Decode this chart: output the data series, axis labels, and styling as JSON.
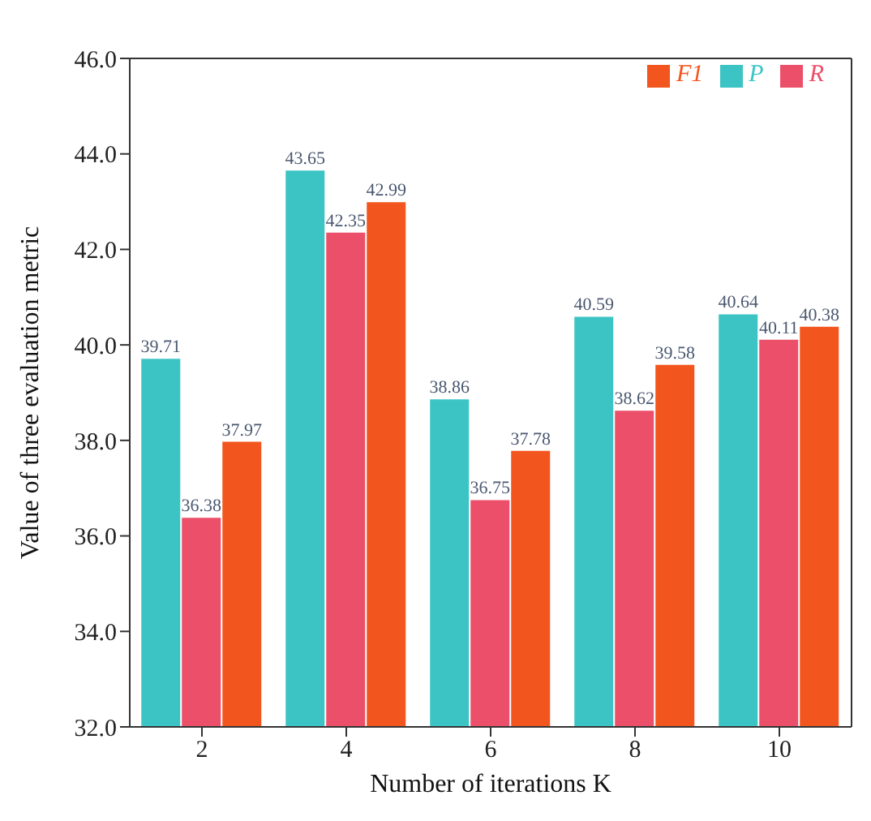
{
  "chart_data": {
    "type": "bar",
    "xlabel": "Number of iterations K",
    "ylabel": "Value of three evaluation metric",
    "categories": [
      "2",
      "4",
      "6",
      "8",
      "10"
    ],
    "series": [
      {
        "name": "P",
        "color": "#3cc4c4",
        "values": [
          39.71,
          43.65,
          38.86,
          40.59,
          40.64
        ]
      },
      {
        "name": "R",
        "color": "#ec4f6a",
        "values": [
          36.38,
          42.35,
          36.75,
          38.62,
          40.11
        ]
      },
      {
        "name": "F1",
        "color": "#f2561e",
        "values": [
          37.97,
          42.99,
          37.78,
          39.58,
          40.38
        ]
      }
    ],
    "ylim": [
      32,
      46
    ],
    "yticks": [
      {
        "value": 32,
        "label": "32.0"
      },
      {
        "value": 34,
        "label": "34.0"
      },
      {
        "value": 36,
        "label": "36.0"
      },
      {
        "value": 38,
        "label": "38.0"
      },
      {
        "value": 40,
        "label": "40.0"
      },
      {
        "value": 42,
        "label": "42.0"
      },
      {
        "value": 44,
        "label": "44.0"
      },
      {
        "value": 46,
        "label": "46.0"
      }
    ],
    "data_labels": true,
    "legend": "top right",
    "grid": false
  }
}
